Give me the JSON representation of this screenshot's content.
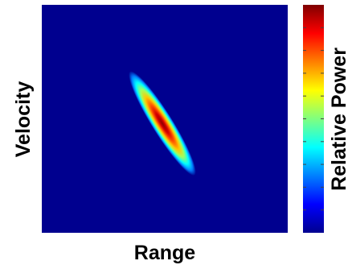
{
  "chart_data": {
    "type": "heatmap",
    "title": "",
    "xlabel": "Range",
    "ylabel": "Velocity",
    "colorbar_label": "Relative Power",
    "colormap": "jet",
    "background_color": "#00008f",
    "tick_labels_shown": false,
    "colorbar_ticks_count": 10,
    "blob": {
      "description": "single elongated high-power peak",
      "center_x": 0.49,
      "center_y": 0.52,
      "orientation": "descends from upper-left to lower-right",
      "peak_relative_power": 1.0
    }
  }
}
